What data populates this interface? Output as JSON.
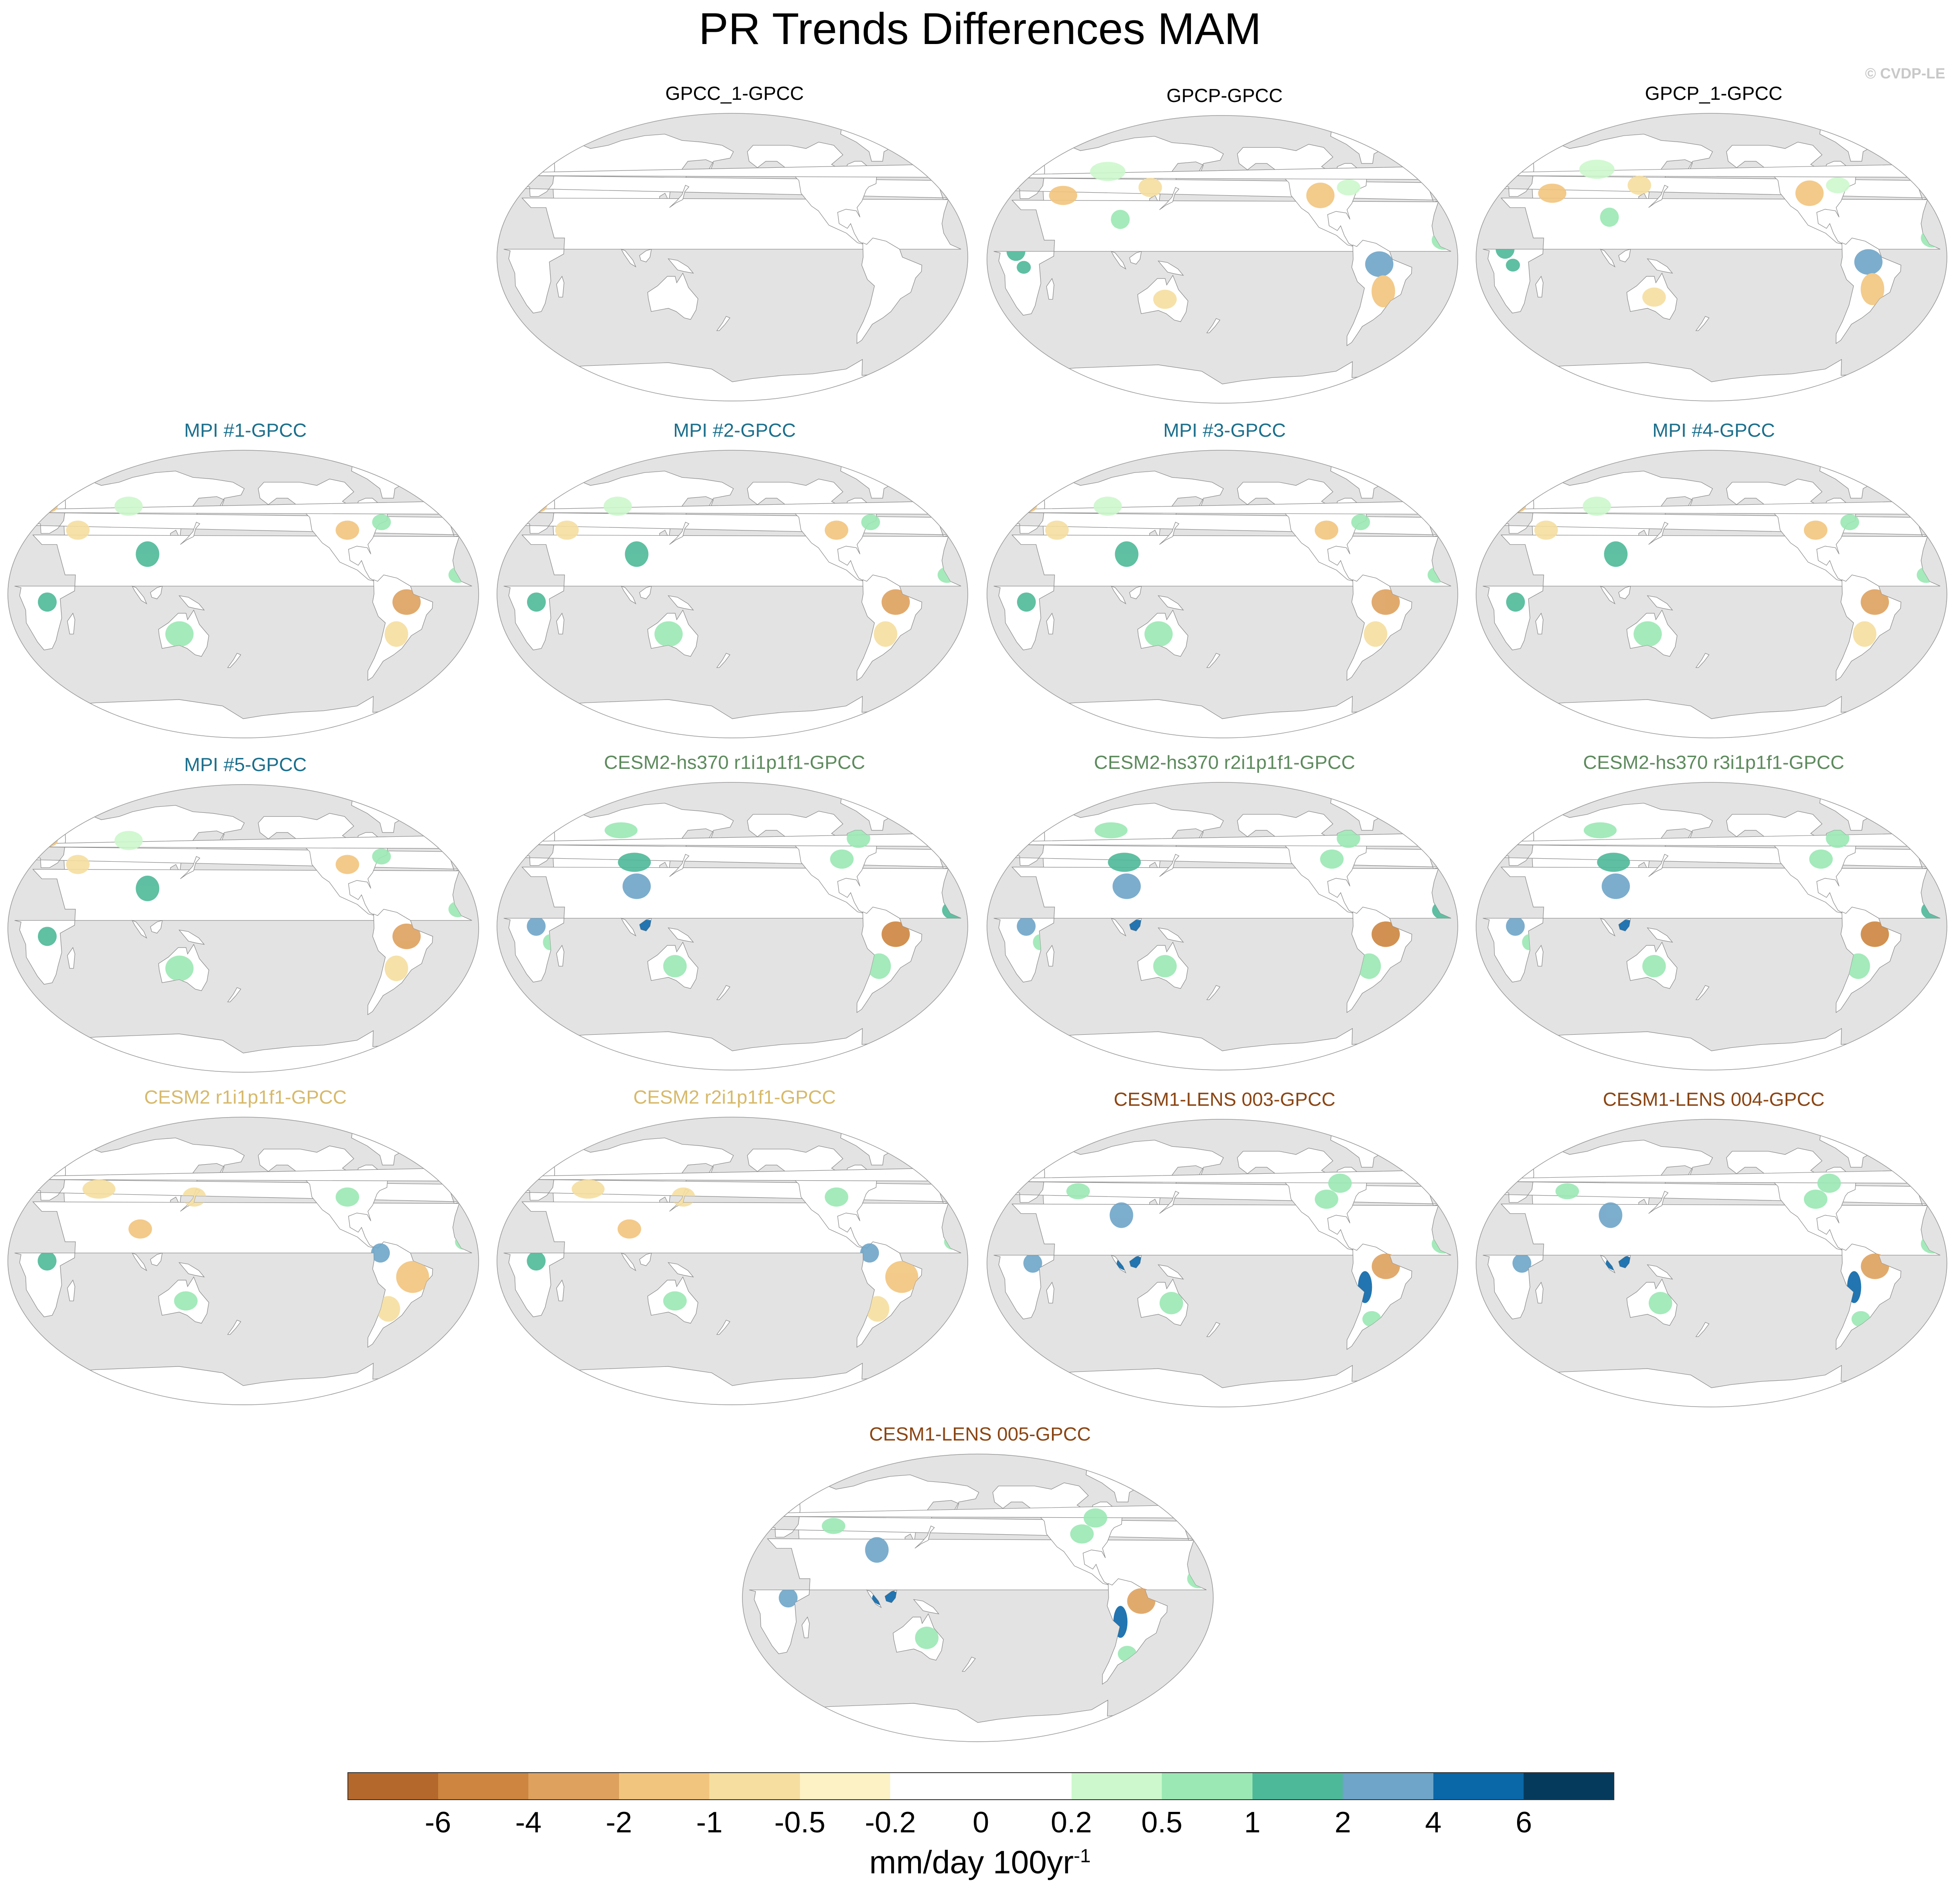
{
  "title": "PR Trends Differences MAM",
  "watermark": "© CVDP-LE",
  "panels": [
    {
      "title": "GPCC_1-GPCC",
      "color": "#000000",
      "pattern": "none"
    },
    {
      "title": "GPCP-GPCC",
      "color": "#000000",
      "pattern": "obs"
    },
    {
      "title": "GPCP_1-GPCC",
      "color": "#000000",
      "pattern": "obs"
    },
    {
      "title": "MPI #1-GPCC",
      "color": "#1b6f8c",
      "pattern": "mpi"
    },
    {
      "title": "MPI #2-GPCC",
      "color": "#1b6f8c",
      "pattern": "mpi"
    },
    {
      "title": "MPI #3-GPCC",
      "color": "#1b6f8c",
      "pattern": "mpi"
    },
    {
      "title": "MPI #4-GPCC",
      "color": "#1b6f8c",
      "pattern": "mpi"
    },
    {
      "title": "MPI #5-GPCC",
      "color": "#1b6f8c",
      "pattern": "mpi"
    },
    {
      "title": "CESM2-hs370 r1i1p1f1-GPCC",
      "color": "#5d8a5d",
      "pattern": "hs370"
    },
    {
      "title": "CESM2-hs370 r2i1p1f1-GPCC",
      "color": "#5d8a5d",
      "pattern": "hs370"
    },
    {
      "title": "CESM2-hs370 r3i1p1f1-GPCC",
      "color": "#5d8a5d",
      "pattern": "hs370"
    },
    {
      "title": "CESM2 r1i1p1f1-GPCC",
      "color": "#d7b96a",
      "pattern": "cesm2"
    },
    {
      "title": "CESM2 r2i1p1f1-GPCC",
      "color": "#d7b96a",
      "pattern": "cesm2"
    },
    {
      "title": "CESM1-LENS 003-GPCC",
      "color": "#8b4513",
      "pattern": "lens"
    },
    {
      "title": "CESM1-LENS 004-GPCC",
      "color": "#8b4513",
      "pattern": "lens"
    },
    {
      "title": "CESM1-LENS 005-GPCC",
      "color": "#8b4513",
      "pattern": "lens"
    }
  ],
  "colorbar": {
    "colors": [
      "#b5682b",
      "#cd853f",
      "#dea15e",
      "#f2c57e",
      "#f5dea0",
      "#fdf2c5",
      "#ffffff",
      "#ffffff",
      "#cdf8cd",
      "#9be8b4",
      "#4eb998",
      "#6ea5c8",
      "#0a67a8",
      "#053a5c"
    ],
    "ticks": [
      "-6",
      "-4",
      "-2",
      "-1",
      "-0.5",
      "-0.2",
      "0",
      "0.2",
      "0.5",
      "1",
      "2",
      "4",
      "6"
    ],
    "units_main": "mm/day 100yr",
    "units_exp": "-1"
  }
}
